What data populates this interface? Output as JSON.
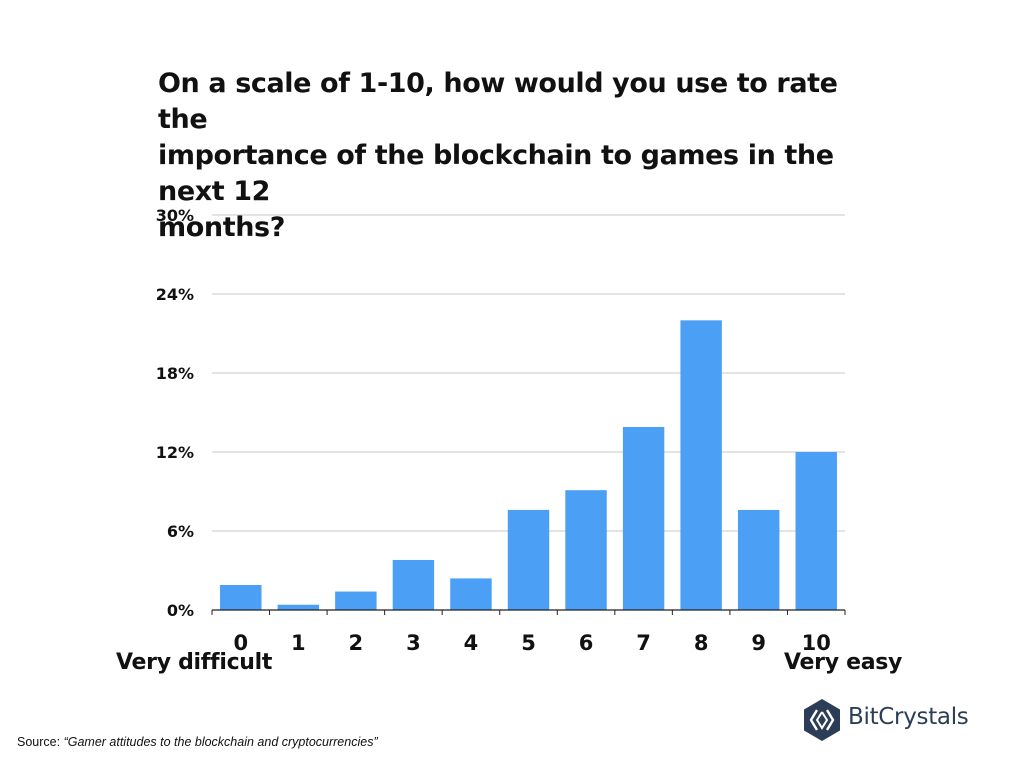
{
  "title": "On a scale of 1-10, how would you use to rate the\nimportance of the blockchain to games in the next 12\nmonths?",
  "scale_labels": {
    "low": "Very difficult",
    "high": "Very easy"
  },
  "source": {
    "prefix": "Source: ",
    "citation": "“Gamer attitudes to the blockchain and cryptocurrencies”"
  },
  "brand": {
    "name": "BitCrystals",
    "color": "#2c3e57"
  },
  "chart_data": {
    "type": "bar",
    "title": "On a scale of 1-10, how would you use to rate the importance of the blockchain to games in the next 12 months?",
    "categories": [
      "0",
      "1",
      "2",
      "3",
      "4",
      "5",
      "6",
      "7",
      "8",
      "9",
      "10"
    ],
    "values": [
      1.9,
      0.4,
      1.4,
      3.8,
      2.4,
      7.6,
      9.1,
      13.9,
      22.0,
      7.6,
      12.0
    ],
    "y_ticks": [
      "0%",
      "6%",
      "12%",
      "18%",
      "24%",
      "30%"
    ],
    "ylim": [
      0,
      30
    ],
    "grid": true,
    "bar_color": "#4b9ff5",
    "legend": "none"
  }
}
